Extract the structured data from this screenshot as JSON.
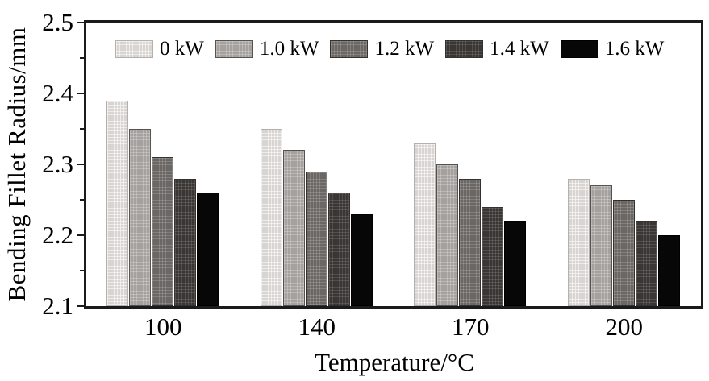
{
  "chart_data": {
    "type": "bar",
    "title": "",
    "xlabel": "Temperature/°C",
    "ylabel": "Bending Fillet Radius/mm",
    "categories": [
      "100",
      "140",
      "170",
      "200"
    ],
    "series": [
      {
        "name": "0 kW",
        "color": "#d7d4d1",
        "values": [
          2.39,
          2.35,
          2.33,
          2.28
        ]
      },
      {
        "name": "1.0 kW",
        "color": "#a5a19e",
        "values": [
          2.35,
          2.32,
          2.3,
          2.27
        ]
      },
      {
        "name": "1.2 kW",
        "color": "#6b6764",
        "values": [
          2.31,
          2.29,
          2.28,
          2.25
        ]
      },
      {
        "name": "1.4 kW",
        "color": "#3a3634",
        "values": [
          2.28,
          2.26,
          2.24,
          2.22
        ]
      },
      {
        "name": "1.6 kW",
        "color": "#070707",
        "values": [
          2.26,
          2.23,
          2.22,
          2.2
        ]
      }
    ],
    "ylim": [
      2.1,
      2.5
    ],
    "y_major_ticks": [
      2.5,
      2.4,
      2.3,
      2.2,
      2.1
    ],
    "y_minor_step": 0.05,
    "grid": false,
    "legend_position": "top-inside",
    "axis_color": "#1b1b1b",
    "background_color": "#ffffff"
  }
}
